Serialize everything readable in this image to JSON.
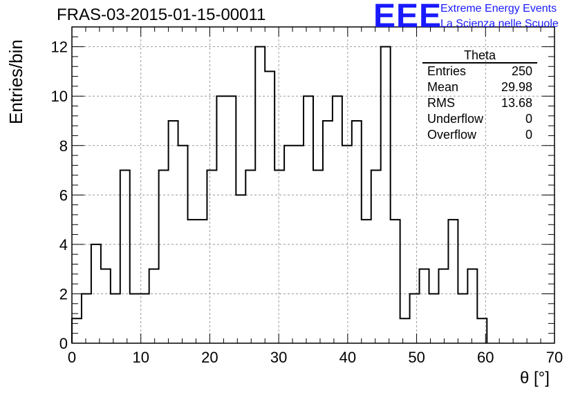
{
  "title": "FRAS-03-2015-01-15-00011",
  "logo": {
    "mark": "EEE",
    "line1": "Extreme Energy Events",
    "line2": "La Scienza nelle Scuole",
    "color": "#1a1aff"
  },
  "stats_box": {
    "title": "Theta",
    "rows": [
      {
        "label": "Entries",
        "value": "250"
      },
      {
        "label": "Mean",
        "value": "29.98"
      },
      {
        "label": "RMS",
        "value": "13.68"
      },
      {
        "label": "Underflow",
        "value": "0"
      },
      {
        "label": "Overflow",
        "value": "0"
      }
    ]
  },
  "chart_data": {
    "type": "bar",
    "subtype": "step-histogram",
    "title": "FRAS-03-2015-01-15-00011",
    "xlabel": "θ [°]",
    "ylabel": "Entries/bin",
    "xlim": [
      0,
      70
    ],
    "ylim": [
      0,
      12.8
    ],
    "xticks": [
      0,
      10,
      20,
      30,
      40,
      50,
      60,
      70
    ],
    "yticks": [
      0,
      2,
      4,
      6,
      8,
      10,
      12
    ],
    "grid": true,
    "bin_width": 1.4,
    "bin_start": 0,
    "values": [
      1,
      2,
      4,
      3,
      2,
      7,
      2,
      2,
      3,
      7,
      9,
      8,
      5,
      5,
      7,
      10,
      10,
      6,
      7,
      12,
      11,
      7,
      8,
      8,
      10,
      7,
      9,
      10,
      8,
      9,
      5,
      7,
      12,
      5,
      1,
      2,
      3,
      2,
      3,
      5,
      2,
      3,
      1
    ],
    "line_color": "#000000"
  }
}
